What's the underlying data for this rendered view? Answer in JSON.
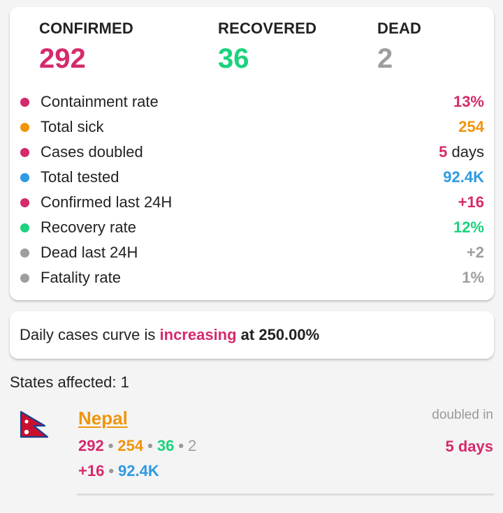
{
  "colors": {
    "confirmed": "#d52a6c",
    "recovered": "#1bd27e",
    "dead": "#9e9e9e",
    "sick": "#f0950c",
    "tested": "#2d9ae3"
  },
  "summary": {
    "confirmed": {
      "label": "CONFIRMED",
      "value": "292"
    },
    "recovered": {
      "label": "RECOVERED",
      "value": "36"
    },
    "dead": {
      "label": "DEAD",
      "value": "2"
    }
  },
  "metrics": [
    {
      "label": "Containment rate",
      "value": "13%",
      "unit": "",
      "color": "#d52a6c"
    },
    {
      "label": "Total sick",
      "value": "254",
      "unit": "",
      "color": "#f0950c"
    },
    {
      "label": "Cases doubled",
      "value": "5",
      "unit": " days",
      "color": "#d52a6c"
    },
    {
      "label": "Total tested",
      "value": "92.4K",
      "unit": "",
      "color": "#2d9ae3"
    },
    {
      "label": "Confirmed last 24H",
      "value": "+16",
      "unit": "",
      "color": "#d52a6c"
    },
    {
      "label": "Recovery rate",
      "value": "12%",
      "unit": "",
      "color": "#1bd27e"
    },
    {
      "label": "Dead last 24H",
      "value": "+2",
      "unit": "",
      "color": "#9e9e9e"
    },
    {
      "label": "Fatality rate",
      "value": "1%",
      "unit": "",
      "color": "#9e9e9e"
    }
  ],
  "curve": {
    "prefix": "Daily cases curve is ",
    "trend": "increasing",
    "suffix": " at 250.00%"
  },
  "states_affected": "States affected: 1",
  "state": {
    "flag_icon": "nepal-flag-icon",
    "name": "Nepal",
    "confirmed": "292",
    "sick": "254",
    "recovered": "36",
    "dead": "2",
    "confirmed_24h": "+16",
    "tested": "92.4K",
    "doubled_label": "doubled in",
    "doubled_value": "5 days"
  }
}
